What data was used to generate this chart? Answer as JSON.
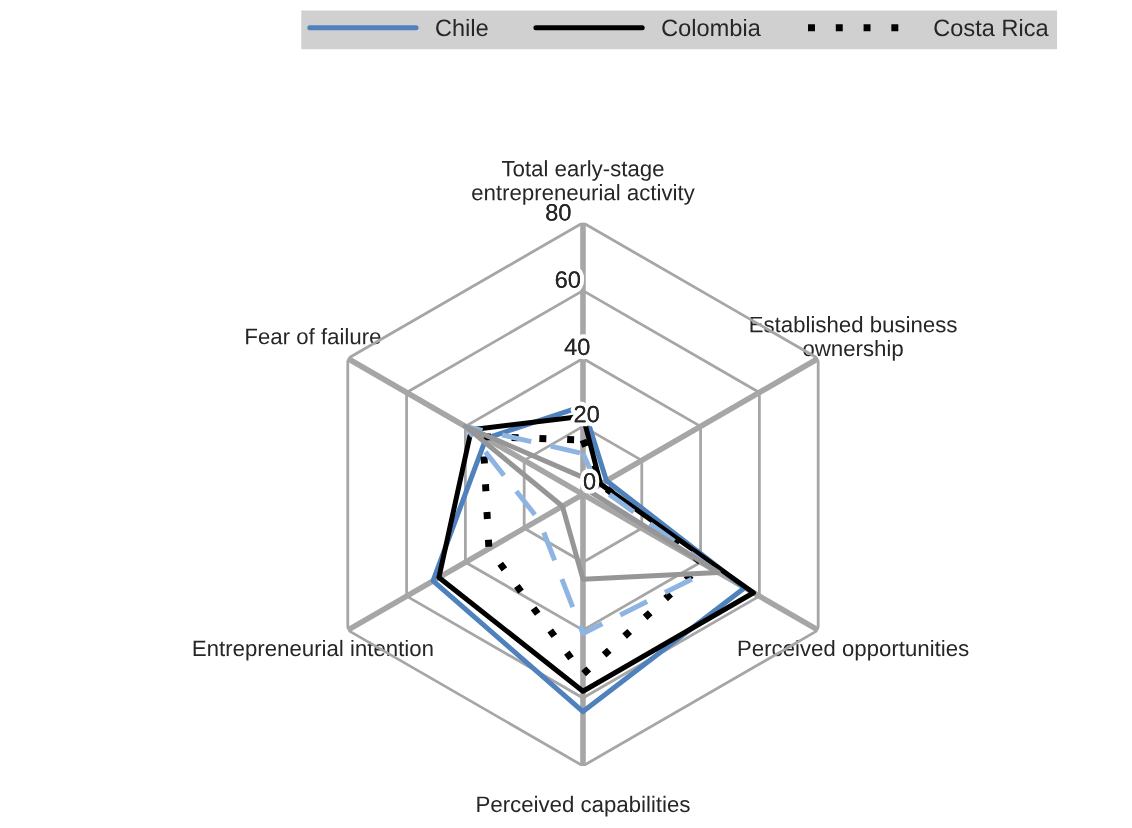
{
  "chart_data": {
    "type": "radar",
    "categories": [
      "Total early-stage\nentrepreneurial activity",
      "Established business\nownership",
      "Perceived opportunities",
      "Perceived capabilities",
      "Entrepreneurial intention",
      "Fear of failure"
    ],
    "series": [
      {
        "name": "Chile",
        "color": "#4f81bd",
        "line_style": "solid",
        "values": [
          26,
          8,
          55,
          64,
          51,
          33
        ]
      },
      {
        "name": "Colombia",
        "color": "#000000",
        "line_style": "solid",
        "values": [
          23,
          6,
          58,
          58,
          49,
          38
        ]
      },
      {
        "name": "Costa Rica",
        "color": "#000000",
        "line_style": "dotted",
        "values": [
          16,
          6,
          41,
          53,
          32,
          34
        ]
      },
      {
        "color": "#8eb4e3",
        "line_style": "dashed",
        "values": [
          12,
          5,
          44,
          41,
          15,
          40
        ]
      },
      {
        "color": "#969696",
        "line_style": "solid",
        "values": [
          5,
          2,
          46,
          25,
          7,
          40
        ]
      }
    ],
    "ylim": [
      0,
      80
    ],
    "yticks": [
      0,
      20,
      40,
      60,
      80
    ],
    "grid": true,
    "legend": "top"
  }
}
